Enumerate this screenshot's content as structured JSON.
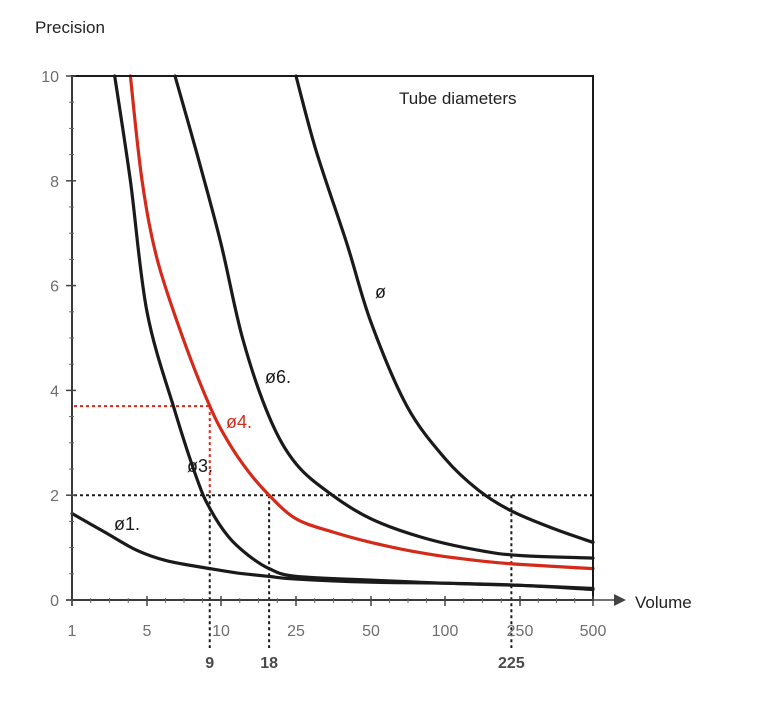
{
  "chart_data": {
    "type": "line",
    "title": "",
    "xlabel": "Volume",
    "ylabel": "Precision",
    "ylim": [
      0,
      10
    ],
    "x_ticks": [
      "1",
      "5",
      "10",
      "25",
      "50",
      "100",
      "250",
      "500"
    ],
    "y_ticks": [
      "0",
      "2",
      "4",
      "6",
      "8",
      "10"
    ],
    "legend_title": "Tube diameters",
    "grid": false,
    "series": [
      {
        "name": "ø1.",
        "color": "#1a1a1a",
        "x": [
          1,
          2,
          4,
          6,
          9,
          12,
          18,
          25,
          50,
          100,
          250,
          500
        ],
        "y": [
          1.65,
          1.3,
          0.95,
          0.75,
          0.6,
          0.52,
          0.45,
          0.4,
          0.34,
          0.32,
          0.28,
          0.2
        ]
      },
      {
        "name": "ø3.",
        "color": "#1a1a1a",
        "x": [
          2.5,
          3.5,
          5,
          6.5,
          8,
          9,
          11,
          14,
          18,
          25,
          50,
          100,
          250,
          500
        ],
        "y": [
          10,
          8,
          5.5,
          3.6,
          2.3,
          1.75,
          1.2,
          0.85,
          0.6,
          0.45,
          0.38,
          0.32,
          0.28,
          0.22
        ]
      },
      {
        "name": "ø4.",
        "color": "#d42a1a",
        "x": [
          3.5,
          4.5,
          5.5,
          7,
          9,
          11,
          14,
          18,
          25,
          35,
          50,
          80,
          150,
          250,
          500
        ],
        "y": [
          10,
          8,
          6.5,
          5,
          3.7,
          3.0,
          2.45,
          2.0,
          1.55,
          1.3,
          1.1,
          0.9,
          0.75,
          0.68,
          0.6
        ]
      },
      {
        "name": "ø6.",
        "color": "#1a1a1a",
        "x": [
          6.5,
          8,
          10,
          13,
          18,
          25,
          35,
          50,
          80,
          150,
          250,
          500
        ],
        "y": [
          10,
          8.5,
          6.8,
          5.0,
          3.5,
          2.6,
          2.0,
          1.55,
          1.2,
          0.95,
          0.85,
          0.8
        ]
      },
      {
        "name": "ø",
        "color": "#1a1a1a",
        "x": [
          25,
          30,
          40,
          50,
          70,
          100,
          150,
          225,
          350,
          500
        ],
        "y": [
          10,
          8.6,
          6.8,
          5.3,
          3.7,
          2.7,
          2.1,
          1.7,
          1.35,
          1.1
        ]
      }
    ],
    "reference_lines": [
      {
        "kind": "horizontal",
        "y": 2,
        "color": "#1a1a1a"
      },
      {
        "kind": "horizontal",
        "y": 3.7,
        "color": "#d42a1a"
      },
      {
        "kind": "vertical",
        "x": 9,
        "color": "#1a1a1a"
      },
      {
        "kind": "vertical",
        "x": 18,
        "color": "#1a1a1a"
      },
      {
        "kind": "vertical",
        "x": 225,
        "color": "#1a1a1a"
      }
    ],
    "marked_x": [
      "9",
      "18",
      "225"
    ]
  }
}
